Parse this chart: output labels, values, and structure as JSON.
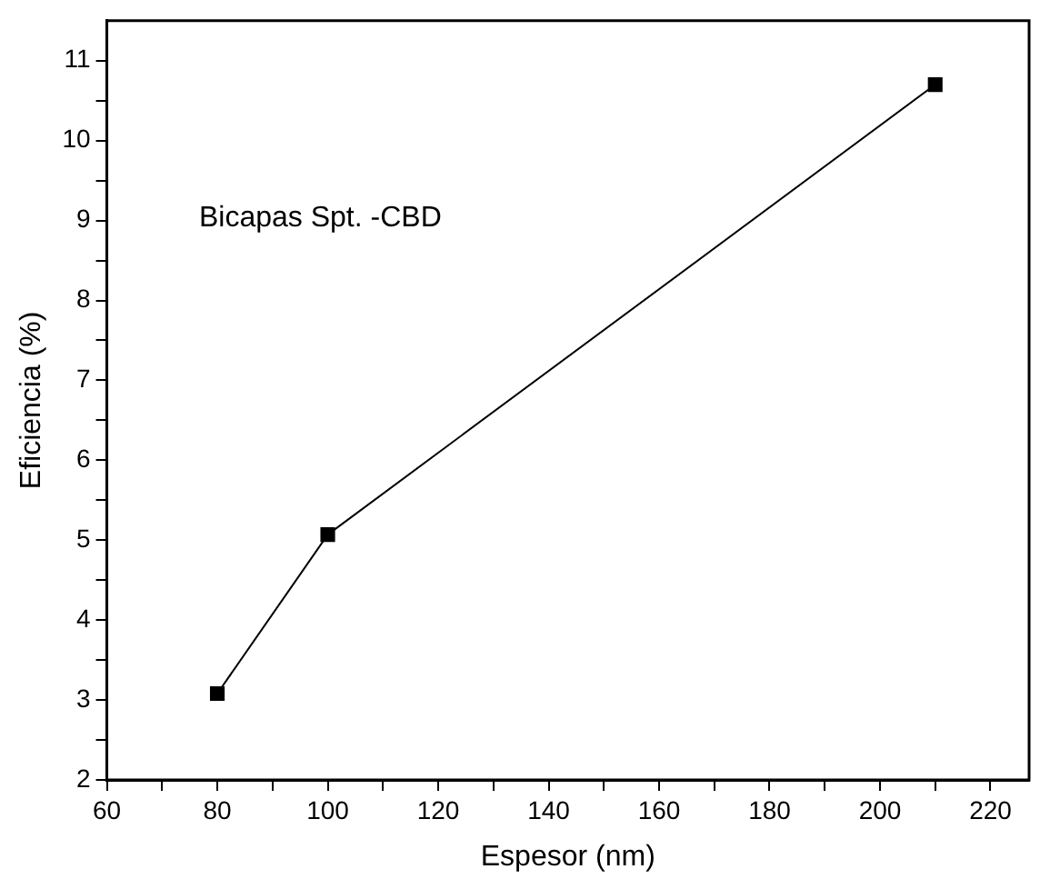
{
  "chart_data": {
    "type": "line",
    "xlabel": "Espesor (nm)",
    "ylabel": "Eficiencia (%)",
    "annotations": [
      "Bicapas Spt. -CBD"
    ],
    "x": [
      80,
      100,
      210
    ],
    "series": [
      {
        "color": "#000000",
        "values": [
          3.08,
          5.07,
          10.7
        ]
      }
    ],
    "xlim": [
      60,
      227
    ],
    "xticks": [
      60,
      {
        "value": 70,
        "label": null
      },
      80,
      {
        "value": 90,
        "label": null
      },
      100,
      {
        "value": 110,
        "label": null
      },
      120,
      {
        "value": 130,
        "label": null
      },
      140,
      {
        "value": 150,
        "label": null
      },
      160,
      {
        "value": 170,
        "label": null
      },
      180,
      {
        "value": 190,
        "label": null
      },
      200,
      {
        "value": 210,
        "label": null
      },
      220
    ],
    "ylim": [
      2,
      11.5
    ],
    "yticks": [
      2,
      {
        "value": 2.5,
        "label": null
      },
      3,
      {
        "value": 3.5,
        "label": null
      },
      4,
      {
        "value": 4.5,
        "label": null
      },
      5,
      {
        "value": 5.5,
        "label": null
      },
      6,
      {
        "value": 6.5,
        "label": null
      },
      7,
      {
        "value": 7.5,
        "label": null
      },
      8,
      {
        "value": 8.5,
        "label": null
      },
      9,
      {
        "value": 9.5,
        "label": null
      },
      10,
      {
        "value": 10.5,
        "label": null
      },
      11
    ],
    "grid": false,
    "legend": false,
    "marker": "square",
    "line_style": "solid"
  }
}
